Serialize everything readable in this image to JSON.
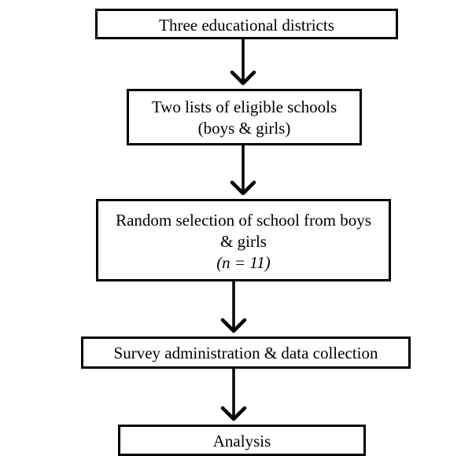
{
  "flowchart": {
    "steps": [
      {
        "lines": [
          "Three educational districts"
        ]
      },
      {
        "lines": [
          "Two lists of eligible schools",
          "(boys & girls)"
        ]
      },
      {
        "lines": [
          "Random selection of school from boys",
          "& girls"
        ],
        "note": "(n = 11)"
      },
      {
        "lines": [
          "Survey administration & data collection"
        ]
      },
      {
        "lines": [
          "Analysis"
        ]
      }
    ]
  }
}
